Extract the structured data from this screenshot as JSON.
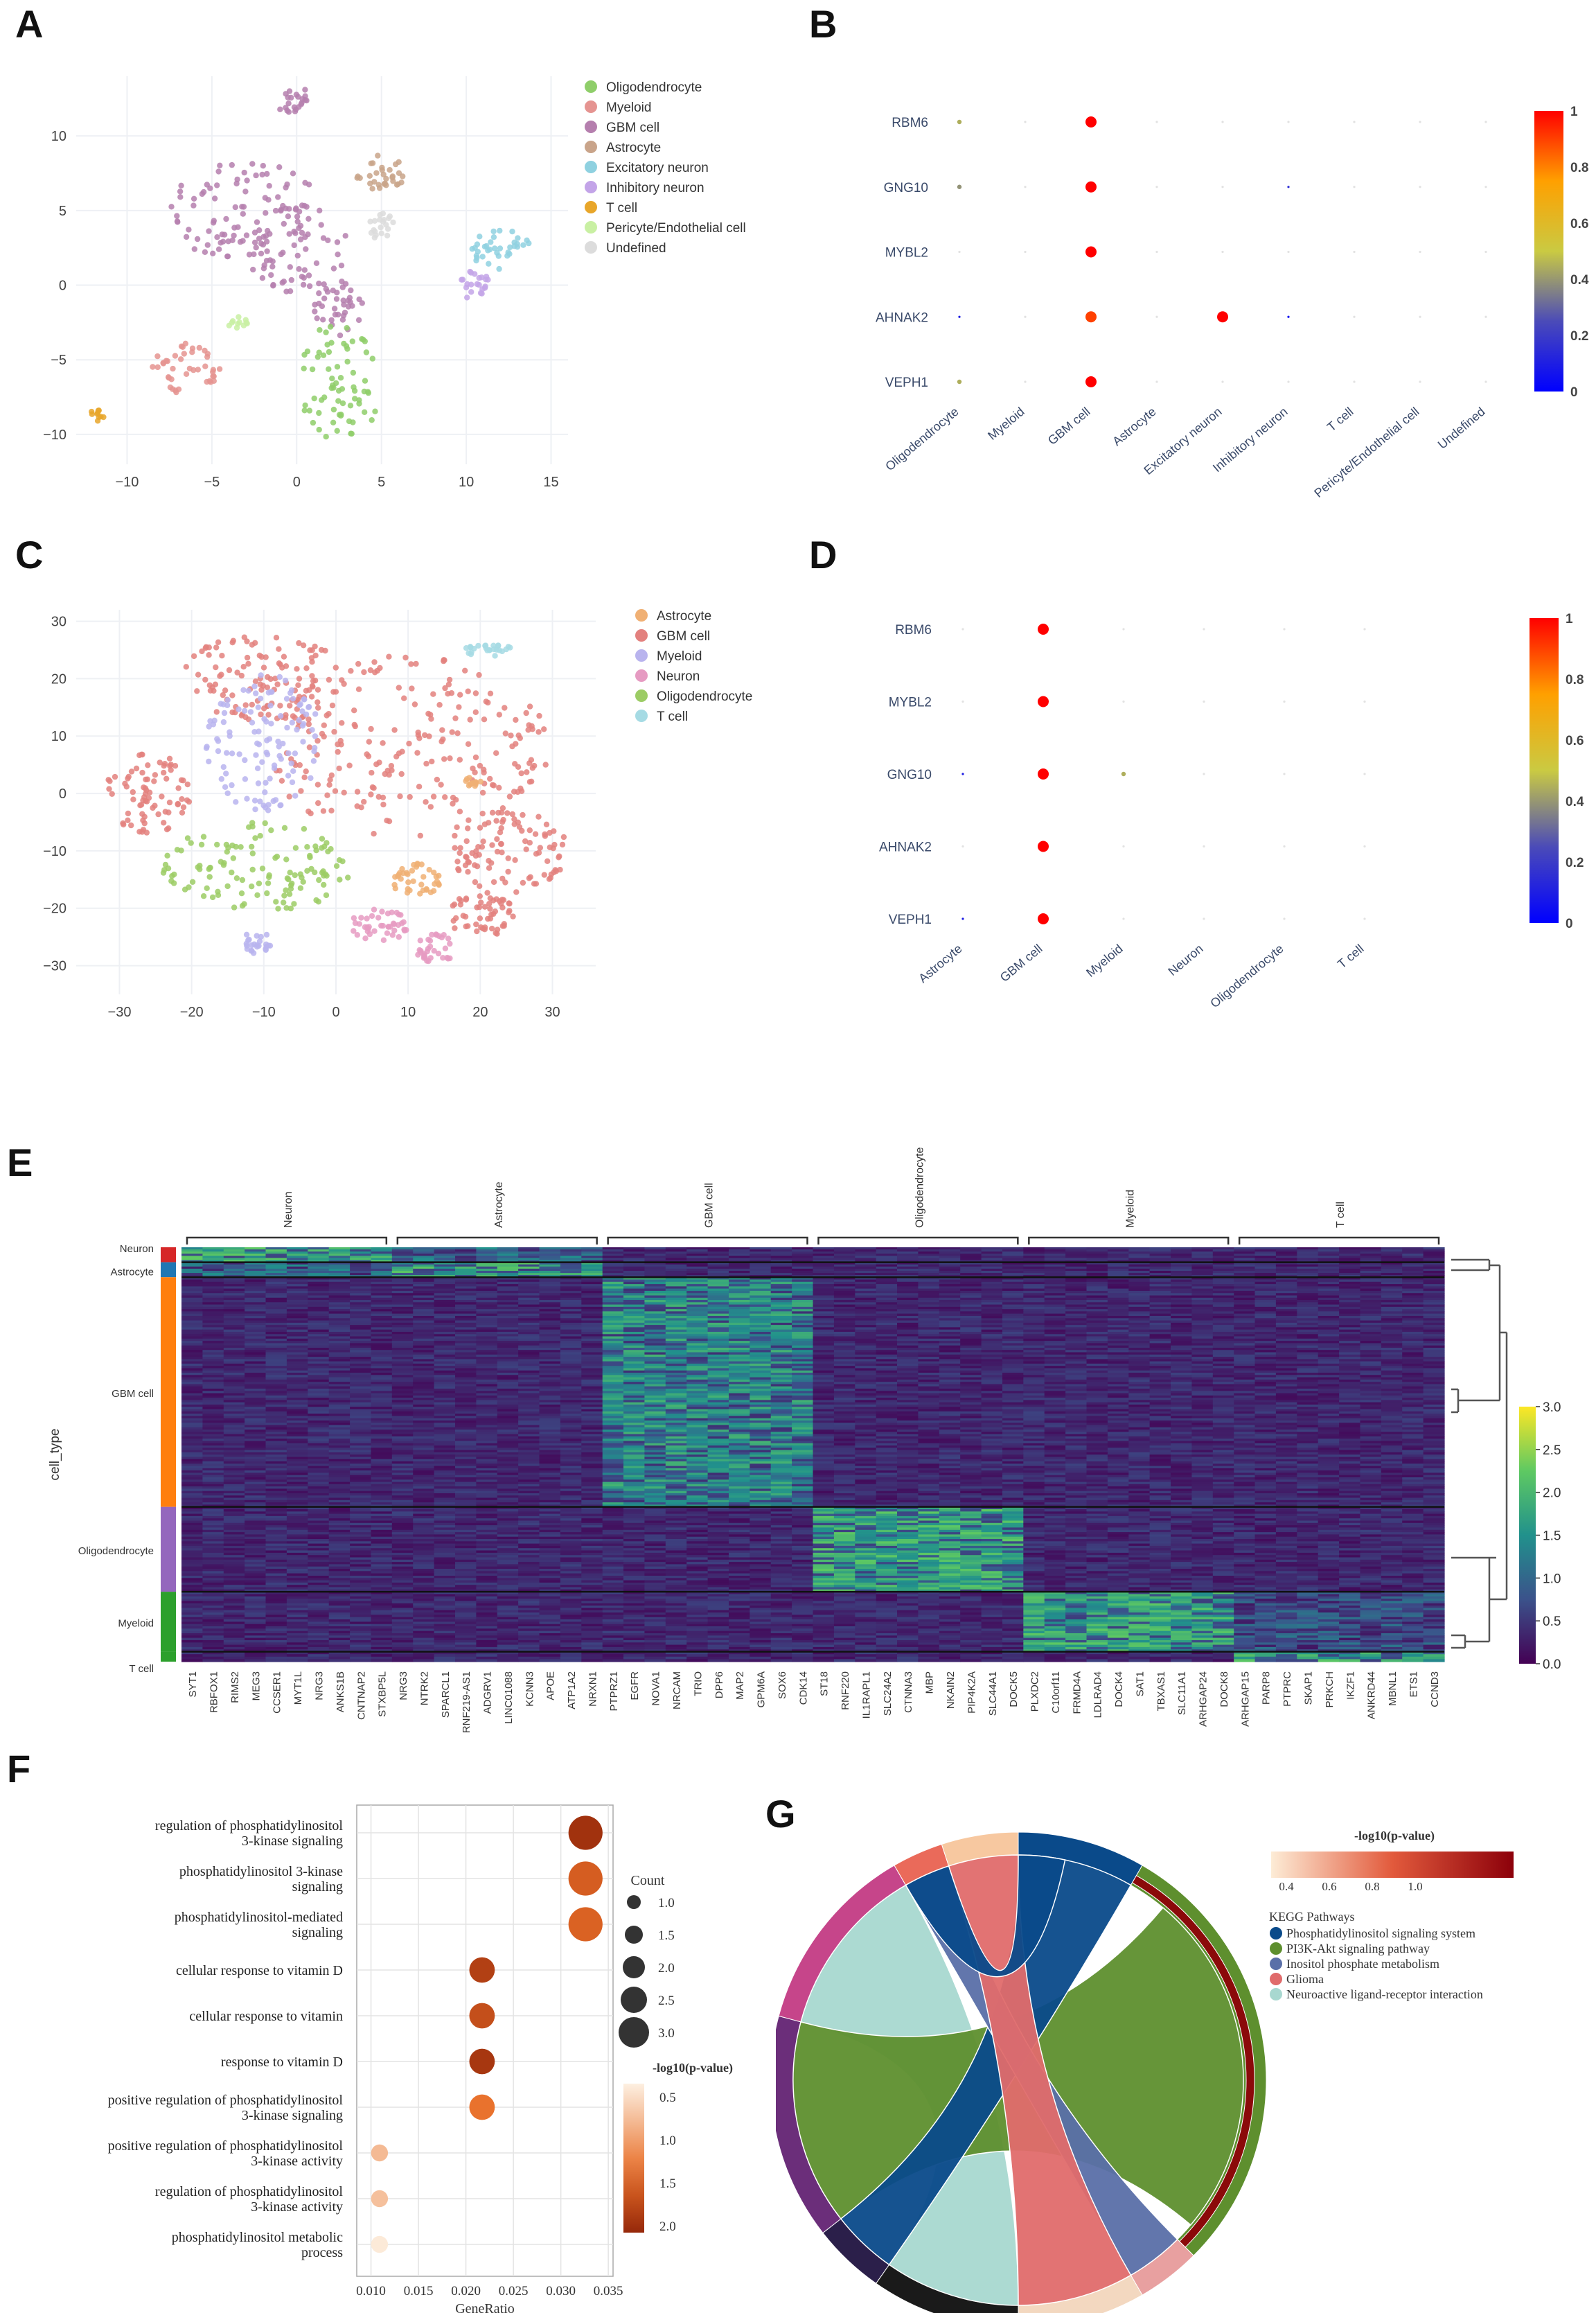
{
  "panel_labels": [
    "A",
    "B",
    "C",
    "D",
    "E",
    "F",
    "G"
  ],
  "chart_data": [
    {
      "id": "A",
      "type": "scatter",
      "title": "",
      "xlim": [
        -13,
        16
      ],
      "ylim": [
        -12,
        14
      ],
      "xticks": [
        -10,
        -5,
        0,
        5,
        10,
        15
      ],
      "yticks": [
        -10,
        -5,
        0,
        5,
        10
      ],
      "legend": [
        {
          "name": "Oligodendrocyte",
          "color": "#8fce6a"
        },
        {
          "name": "Myeloid",
          "color": "#e59491"
        },
        {
          "name": "GBM cell",
          "color": "#b57fae"
        },
        {
          "name": "Astrocyte",
          "color": "#c9a48a"
        },
        {
          "name": "Excitatory neuron",
          "color": "#8fd1e0"
        },
        {
          "name": "Inhibitory neuron",
          "color": "#c3a4e8"
        },
        {
          "name": "T cell",
          "color": "#e8a62a"
        },
        {
          "name": "Pericyte/Endothelial cell",
          "color": "#c9f0a3"
        },
        {
          "name": "Undefined",
          "color": "#dcdcdc"
        }
      ],
      "clusters": [
        {
          "type": "GBM cell",
          "cx": -3,
          "cy": 5,
          "rx": 4.5,
          "ry": 3.5
        },
        {
          "type": "GBM cell",
          "cx": 0,
          "cy": 2.5,
          "rx": 3,
          "ry": 3
        },
        {
          "type": "GBM cell",
          "cx": -0.3,
          "cy": 12.5,
          "rx": 1,
          "ry": 1
        },
        {
          "type": "GBM cell",
          "cx": 2.5,
          "cy": -1.5,
          "rx": 1.5,
          "ry": 2
        },
        {
          "type": "Oligodendrocyte",
          "cx": 2.5,
          "cy": -6.5,
          "rx": 2.5,
          "ry": 4
        },
        {
          "type": "Myeloid",
          "cx": -6.5,
          "cy": -5.5,
          "rx": 2,
          "ry": 1.8
        },
        {
          "type": "Astrocyte",
          "cx": 5,
          "cy": 7.5,
          "rx": 1.5,
          "ry": 1.3
        },
        {
          "type": "Excitatory neuron",
          "cx": 12,
          "cy": 2.5,
          "rx": 1.8,
          "ry": 1.5
        },
        {
          "type": "Inhibitory neuron",
          "cx": 10.5,
          "cy": 0,
          "rx": 1,
          "ry": 1
        },
        {
          "type": "T cell",
          "cx": -11.8,
          "cy": -8.7,
          "rx": 0.5,
          "ry": 0.4
        },
        {
          "type": "Undefined",
          "cx": 5,
          "cy": 4,
          "rx": 0.8,
          "ry": 1
        },
        {
          "type": "Pericyte/Endothelial cell",
          "cx": -3.5,
          "cy": -2.5,
          "rx": 0.6,
          "ry": 0.4
        }
      ]
    },
    {
      "id": "B",
      "type": "scatter",
      "subtype": "dotplot",
      "genes": [
        "RBM6",
        "GNG10",
        "MYBL2",
        "AHNAK2",
        "VEPH1"
      ],
      "categories": [
        "Oligodendrocyte",
        "Myeloid",
        "GBM cell",
        "Astrocyte",
        "Excitatory neuron",
        "Inhibitory neuron",
        "T cell",
        "Pericyte/Endothelial cell",
        "Undefined"
      ],
      "values": [
        [
          0.45,
          0,
          1.0,
          0,
          0,
          0,
          0,
          0,
          0
        ],
        [
          0.4,
          0,
          1.0,
          0,
          0,
          0.15,
          0,
          0,
          0
        ],
        [
          0,
          0,
          1.0,
          0,
          0,
          0,
          0,
          0,
          0
        ],
        [
          0.1,
          0,
          0.9,
          0,
          1.0,
          0.05,
          0,
          0,
          0
        ],
        [
          0.45,
          0,
          1.0,
          0,
          0,
          0,
          0,
          0,
          0
        ]
      ],
      "colorbar": {
        "min": 0,
        "max": 1,
        "ticks": [
          "0",
          "0.2",
          "0.4",
          "0.6",
          "0.8",
          "1"
        ]
      }
    },
    {
      "id": "C",
      "type": "scatter",
      "xlim": [
        -36,
        36
      ],
      "ylim": [
        -35,
        32
      ],
      "xticks": [
        -30,
        -20,
        -10,
        0,
        10,
        20,
        30
      ],
      "yticks": [
        -30,
        -20,
        -10,
        0,
        10,
        20,
        30
      ],
      "legend": [
        {
          "name": "Astrocyte",
          "color": "#f0b074"
        },
        {
          "name": "GBM cell",
          "color": "#e3817e"
        },
        {
          "name": "Myeloid",
          "color": "#b9b4ee"
        },
        {
          "name": "Neuron",
          "color": "#e69bc2"
        },
        {
          "name": "Oligodendrocyte",
          "color": "#9ccc65"
        },
        {
          "name": "T cell",
          "color": "#a6dbe4"
        }
      ],
      "clusters": [
        {
          "type": "GBM cell",
          "cx": 10,
          "cy": 8,
          "rx": 20,
          "ry": 16
        },
        {
          "type": "GBM cell",
          "cx": -10,
          "cy": 20,
          "rx": 12,
          "ry": 8
        },
        {
          "type": "GBM cell",
          "cx": -26,
          "cy": 0,
          "rx": 6,
          "ry": 7
        },
        {
          "type": "GBM cell",
          "cx": 24,
          "cy": -10,
          "rx": 8,
          "ry": 8
        },
        {
          "type": "GBM cell",
          "cx": 20,
          "cy": -21,
          "rx": 5,
          "ry": 4
        },
        {
          "type": "Myeloid",
          "cx": -10,
          "cy": 9,
          "rx": 8,
          "ry": 12
        },
        {
          "type": "Myeloid",
          "cx": -11,
          "cy": -26,
          "rx": 2,
          "ry": 2
        },
        {
          "type": "Oligodendrocyte",
          "cx": -11,
          "cy": -13,
          "rx": 13,
          "ry": 8
        },
        {
          "type": "Astrocyte",
          "cx": 11,
          "cy": -15,
          "rx": 3.5,
          "ry": 3
        },
        {
          "type": "Astrocyte",
          "cx": 19,
          "cy": 2,
          "rx": 1.5,
          "ry": 0.8
        },
        {
          "type": "Neuron",
          "cx": 6,
          "cy": -23,
          "rx": 4,
          "ry": 3
        },
        {
          "type": "Neuron",
          "cx": 14,
          "cy": -27,
          "rx": 3,
          "ry": 2.5
        },
        {
          "type": "T cell",
          "cx": 21,
          "cy": 25,
          "rx": 4,
          "ry": 1.2
        }
      ]
    },
    {
      "id": "D",
      "type": "scatter",
      "subtype": "dotplot",
      "genes": [
        "RBM6",
        "MYBL2",
        "GNG10",
        "AHNAK2",
        "VEPH1"
      ],
      "categories": [
        "Astrocyte",
        "GBM cell",
        "Myeloid",
        "Neuron",
        "Oligodendrocyte",
        "T cell"
      ],
      "values": [
        [
          0,
          1.0,
          0,
          0,
          0,
          0
        ],
        [
          0,
          1.0,
          0,
          0,
          0,
          0
        ],
        [
          0.1,
          1.0,
          0.45,
          0,
          0,
          0
        ],
        [
          0,
          1.0,
          0,
          0,
          0,
          0
        ],
        [
          0.1,
          1.0,
          0,
          0,
          0,
          0
        ]
      ],
      "colorbar": {
        "min": 0,
        "max": 1,
        "ticks": [
          "0",
          "0.2",
          "0.4",
          "0.6",
          "0.8",
          "1"
        ]
      }
    },
    {
      "id": "E",
      "type": "heatmap",
      "ylabel": "cell_type",
      "groups": [
        {
          "name": "Neuron",
          "genes": [
            "SYT1",
            "RBFOX1",
            "RIMS2",
            "MEG3",
            "CCSER1",
            "MYT1L",
            "NRG3",
            "ANKS1B",
            "CNTNAP2",
            "STXBP5L"
          ]
        },
        {
          "name": "Astrocyte",
          "genes": [
            "NRG3",
            "NTRK2",
            "SPARCL1",
            "RNF219-AS1",
            "ADGRV1",
            "LINC01088",
            "KCNN3",
            "APOE",
            "ATP1A2",
            "NRXN1"
          ]
        },
        {
          "name": "GBM cell",
          "genes": [
            "PTPRZ1",
            "EGFR",
            "NOVA1",
            "NRCAM",
            "TRIO",
            "DPP6",
            "MAP2",
            "GPM6A",
            "SOX6",
            "CDK14"
          ]
        },
        {
          "name": "Oligodendrocyte",
          "genes": [
            "ST18",
            "RNF220",
            "IL1RAPL1",
            "SLC24A2",
            "CTNNA3",
            "MBP",
            "NKAIN2",
            "PIP4K2A",
            "SLC44A1",
            "DOCK5"
          ]
        },
        {
          "name": "Myeloid",
          "genes": [
            "PLXDC2",
            "C10orf11",
            "FRMD4A",
            "LDLRAD4",
            "DOCK4",
            "SAT1",
            "TBXAS1",
            "SLC11A1",
            "ARHGAP24",
            "DOCK8"
          ]
        },
        {
          "name": "T cell",
          "genes": [
            "ARHGAP15",
            "PARP8",
            "PTPRC",
            "SKAP1",
            "PRKCH",
            "IKZF1",
            "ANKRD44",
            "MBNL1",
            "ETS1",
            "CCND3"
          ]
        }
      ],
      "rows": [
        {
          "name": "Neuron",
          "color": "#d62728",
          "weight": 3
        },
        {
          "name": "Astrocyte",
          "color": "#1f77b4",
          "weight": 3
        },
        {
          "name": "GBM cell",
          "color": "#ff7f0e",
          "weight": 46
        },
        {
          "name": "Oligodendrocyte",
          "color": "#9467bd",
          "weight": 17
        },
        {
          "name": "Myeloid",
          "color": "#2ca02c",
          "weight": 12
        },
        {
          "name": "T cell",
          "color": "#2ca02c",
          "weight": 2
        }
      ],
      "colorbar": {
        "min": 0,
        "max": 3,
        "ticks": [
          "0.0",
          "0.5",
          "1.0",
          "1.5",
          "2.0",
          "2.5",
          "3.0"
        ]
      }
    },
    {
      "id": "F",
      "type": "scatter",
      "subtype": "enrichment-dotplot",
      "xlabel": "GeneRatio",
      "xlim": [
        0.0085,
        0.0355
      ],
      "xticks": [
        "0.010",
        "0.015",
        "0.020",
        "0.025",
        "0.030",
        "0.035"
      ],
      "terms": [
        {
          "label": [
            "regulation of phosphatidylinositol",
            "3-kinase signaling"
          ],
          "ratio": 0.0326,
          "count": 3,
          "logp": 2.0
        },
        {
          "label": [
            "phosphatidylinositol 3-kinase",
            "signaling"
          ],
          "ratio": 0.0326,
          "count": 3,
          "logp": 1.55
        },
        {
          "label": [
            "phosphatidylinositol-mediated",
            "signaling"
          ],
          "ratio": 0.0326,
          "count": 3,
          "logp": 1.5
        },
        {
          "label": [
            "cellular response to vitamin D"
          ],
          "ratio": 0.0217,
          "count": 2,
          "logp": 1.85
        },
        {
          "label": [
            "cellular response to vitamin"
          ],
          "ratio": 0.0217,
          "count": 2,
          "logp": 1.7
        },
        {
          "label": [
            "response to vitamin D"
          ],
          "ratio": 0.0217,
          "count": 2,
          "logp": 1.95
        },
        {
          "label": [
            "positive regulation of phosphatidylinositol",
            "3-kinase signaling"
          ],
          "ratio": 0.0217,
          "count": 2,
          "logp": 1.35
        },
        {
          "label": [
            "positive regulation of phosphatidylinositol",
            "3-kinase activity"
          ],
          "ratio": 0.0109,
          "count": 1,
          "logp": 0.75
        },
        {
          "label": [
            "regulation of phosphatidylinositol",
            "3-kinase activity"
          ],
          "ratio": 0.0109,
          "count": 1,
          "logp": 0.7
        },
        {
          "label": [
            "phosphatidylinositol metabolic",
            "process"
          ],
          "ratio": 0.0109,
          "count": 1,
          "logp": 0.35
        }
      ],
      "size_legend": {
        "title": "Count",
        "values": [
          1.0,
          1.5,
          2.0,
          2.5,
          3.0
        ],
        "labels": [
          "1.0",
          "1.5",
          "2.0",
          "2.5",
          "3.0"
        ]
      },
      "color_legend": {
        "title": "-log10(p-value)",
        "ticks": [
          "0.5",
          "1.0",
          "1.5",
          "2.0"
        ],
        "min": 0.3,
        "max": 2.1
      }
    },
    {
      "id": "G",
      "type": "pie",
      "subtype": "chord",
      "colorbar": {
        "title": "-log10(p-value)",
        "ticks": [
          "0.4",
          "0.6",
          "0.8",
          "1.0"
        ]
      },
      "legend_title": "KEGG Pathways",
      "pathways": [
        {
          "name": "Phosphatidylinositol signaling system",
          "color": "#0a4a8a"
        },
        {
          "name": "PI3K-Akt signaling pathway",
          "color": "#5e8f2e"
        },
        {
          "name": "Inositol phosphate metabolism",
          "color": "#5a6fa8"
        },
        {
          "name": "Glioma",
          "color": "#e06b6b"
        },
        {
          "name": "Neuroactive ligand-receptor interaction",
          "color": "#a8d8d0"
        }
      ]
    }
  ]
}
